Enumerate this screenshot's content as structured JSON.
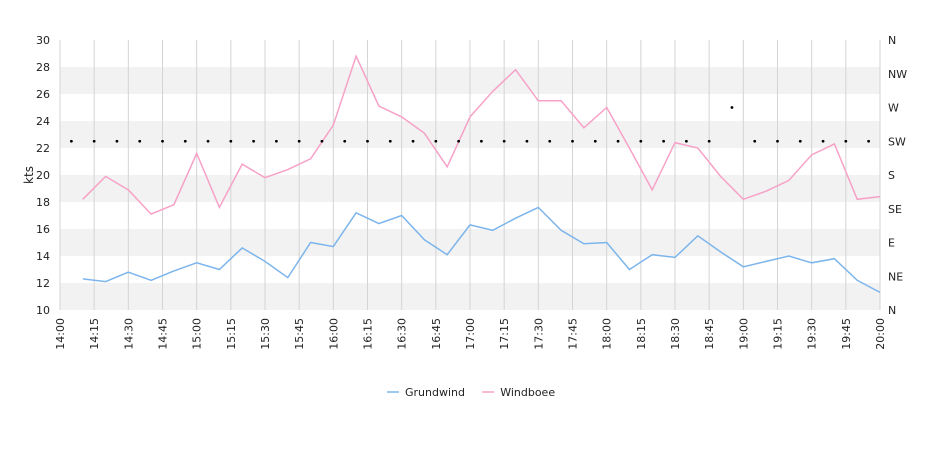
{
  "chart_data": {
    "type": "line",
    "ylabel": "kts",
    "ylim": [
      10,
      30
    ],
    "yticks": [
      10,
      12,
      14,
      16,
      18,
      20,
      22,
      24,
      26,
      28,
      30
    ],
    "direction_labels": [
      "N",
      "NE",
      "E",
      "SE",
      "S",
      "SW",
      "W",
      "NW",
      "N"
    ],
    "xticks": [
      "14:00",
      "14:15",
      "14:30",
      "14:45",
      "15:00",
      "15:15",
      "15:30",
      "15:45",
      "16:00",
      "16:15",
      "16:30",
      "16:45",
      "17:00",
      "17:15",
      "17:30",
      "17:45",
      "18:00",
      "18:15",
      "18:30",
      "18:45",
      "19:00",
      "19:15",
      "19:30",
      "19:45",
      "20:00"
    ],
    "x": [
      "14:10",
      "14:20",
      "14:30",
      "14:40",
      "14:50",
      "15:00",
      "15:10",
      "15:20",
      "15:30",
      "15:40",
      "15:50",
      "16:00",
      "16:10",
      "16:20",
      "16:30",
      "16:40",
      "16:50",
      "17:00",
      "17:10",
      "17:20",
      "17:30",
      "17:40",
      "17:50",
      "18:00",
      "18:10",
      "18:20",
      "18:30",
      "18:40",
      "18:50",
      "19:00",
      "19:10",
      "19:20",
      "19:30",
      "19:40",
      "19:50",
      "20:00"
    ],
    "series": [
      {
        "name": "Grundwind",
        "color": "#7cb5ec",
        "values": [
          12.3,
          12.1,
          12.8,
          12.2,
          12.9,
          13.5,
          13.0,
          14.6,
          13.6,
          12.4,
          15.0,
          14.7,
          17.2,
          16.4,
          17.0,
          15.2,
          14.1,
          16.3,
          15.9,
          16.8,
          17.6,
          15.9,
          14.9,
          15.0,
          13.0,
          14.1,
          13.9,
          15.5,
          14.3,
          13.2,
          13.6,
          14.0,
          13.5,
          13.8,
          12.2,
          11.3
        ]
      },
      {
        "name": "Windboee",
        "color": "#f7a1c7",
        "values": [
          18.2,
          19.9,
          18.9,
          17.1,
          17.8,
          21.6,
          17.6,
          20.8,
          19.8,
          20.4,
          21.2,
          23.7,
          28.8,
          25.1,
          24.3,
          23.1,
          20.6,
          24.3,
          26.2,
          27.8,
          25.5,
          25.5,
          23.5,
          25.0,
          22.0,
          18.9,
          22.4,
          22.0,
          19.9,
          18.2,
          18.8,
          19.6,
          21.5,
          22.3,
          18.2,
          18.4
        ]
      }
    ],
    "direction": {
      "color": "#000000",
      "x": [
        "14:05",
        "14:15",
        "14:25",
        "14:35",
        "14:45",
        "14:55",
        "15:05",
        "15:15",
        "15:25",
        "15:35",
        "15:45",
        "15:55",
        "16:05",
        "16:15",
        "16:25",
        "16:35",
        "16:45",
        "16:55",
        "17:05",
        "17:15",
        "17:25",
        "17:35",
        "17:45",
        "17:55",
        "18:05",
        "18:15",
        "18:25",
        "18:35",
        "18:45",
        "18:55",
        "19:05",
        "19:15",
        "19:25",
        "19:35",
        "19:45",
        "19:55"
      ],
      "values": [
        "SW",
        "SW",
        "SW",
        "SW",
        "SW",
        "SW",
        "SW",
        "SW",
        "SW",
        "SW",
        "SW",
        "SW",
        "SW",
        "SW",
        "SW",
        "SW",
        "SW",
        "SW",
        "SW",
        "SW",
        "SW",
        "SW",
        "SW",
        "SW",
        "SW",
        "SW",
        "SW",
        "SW",
        "SW",
        "W",
        "SW",
        "SW",
        "SW",
        "SW",
        "SW",
        "SW"
      ]
    },
    "grid": true,
    "legend": "bottom-center"
  }
}
